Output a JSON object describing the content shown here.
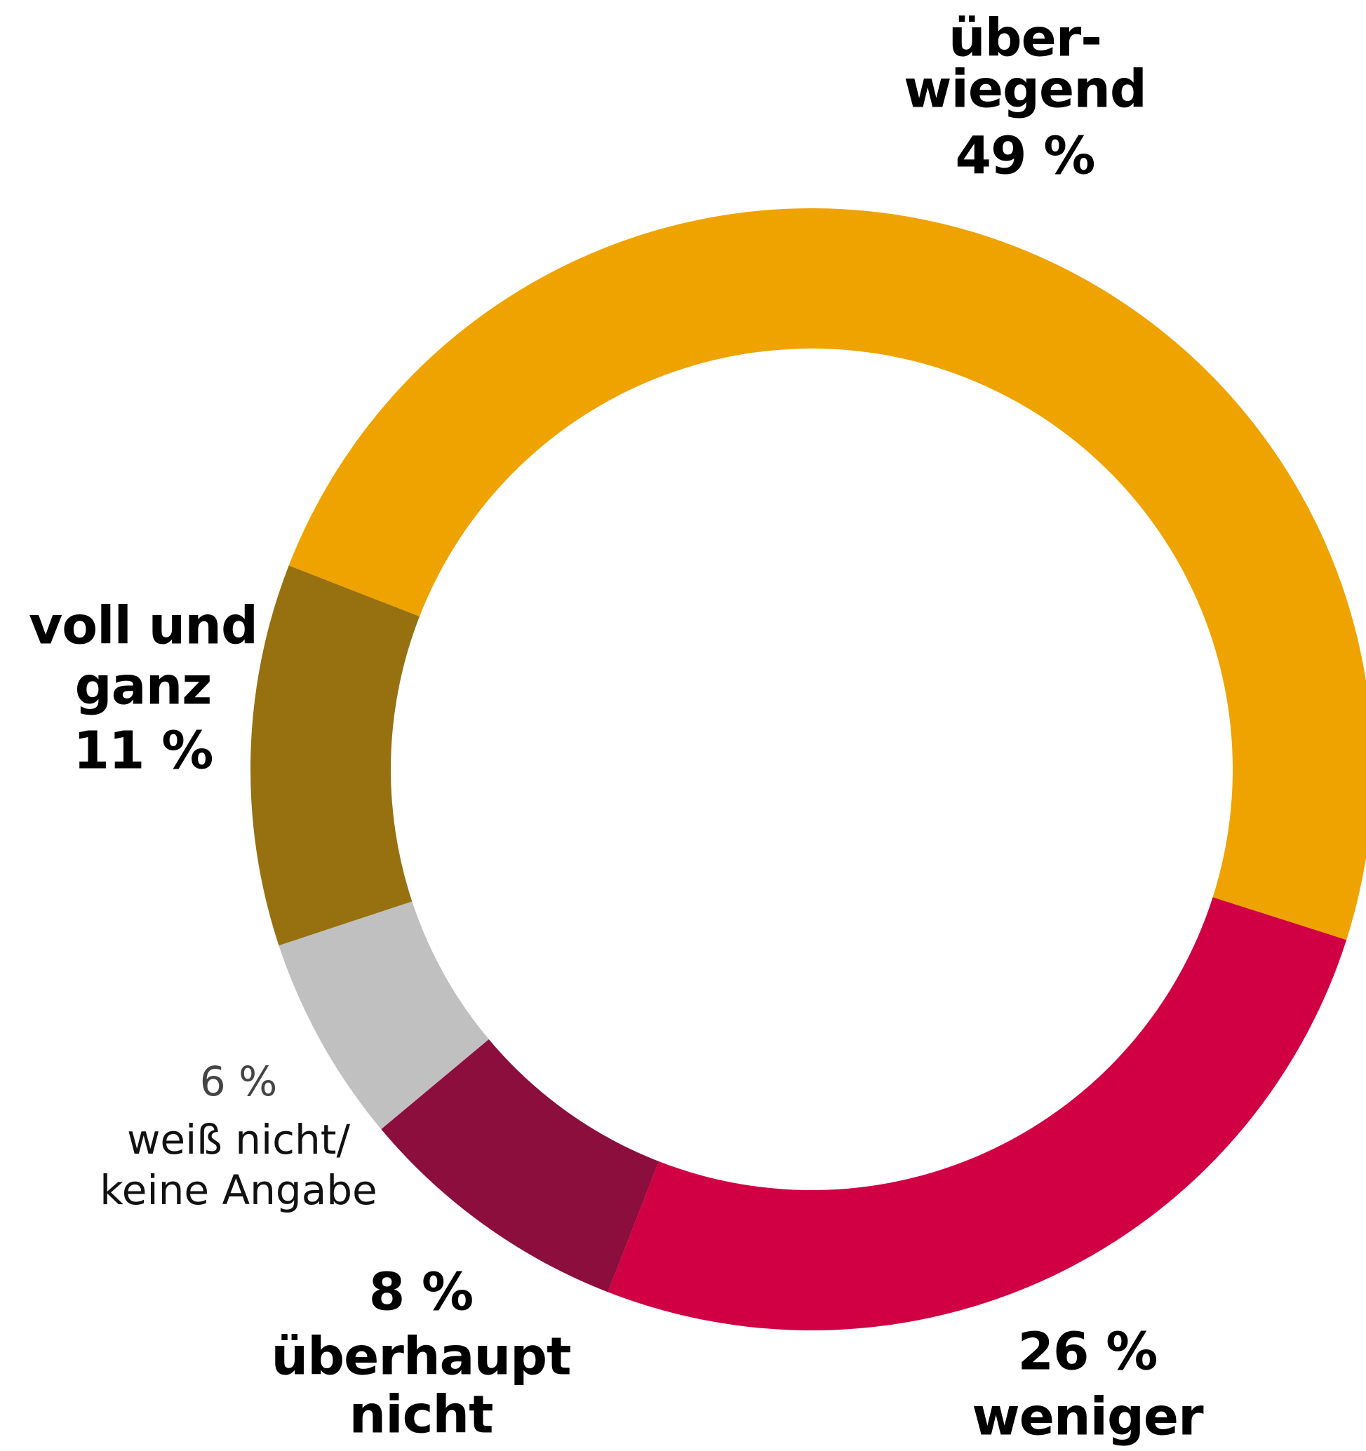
{
  "chart_data": {
    "type": "donut",
    "categories": [
      [
        "über-",
        "wiegend"
      ],
      [
        "weniger"
      ],
      [
        "überhaupt",
        "nicht"
      ],
      [
        "weiß nicht/",
        "keine Angabe"
      ],
      [
        "voll und",
        "ganz"
      ]
    ],
    "values": [
      49,
      26,
      8,
      6,
      11
    ],
    "value_labels": [
      "49 %",
      "26 %",
      "8 %",
      "6 %",
      "11 %"
    ],
    "colors": [
      "#efa300",
      "#d10045",
      "#8c0e3c",
      "#c0c0c0",
      "#977010"
    ]
  }
}
